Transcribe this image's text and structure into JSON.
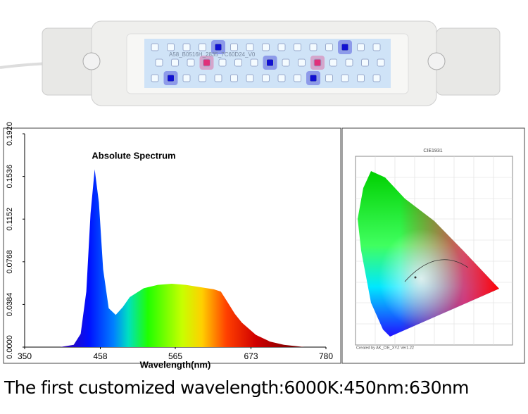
{
  "photo": {
    "label": "A58_B0516H_2835_7C60D24_V0"
  },
  "chart_data": {
    "type": "area",
    "title": "Absolute Spectrum",
    "x_label": "Wavelength(nm)",
    "x": [
      400,
      420,
      430,
      438,
      444,
      450,
      456,
      462,
      470,
      480,
      490,
      500,
      520,
      540,
      560,
      580,
      600,
      620,
      630,
      640,
      650,
      660,
      680,
      700,
      720,
      750
    ],
    "values": [
      0,
      0.002,
      0.012,
      0.05,
      0.12,
      0.16,
      0.13,
      0.07,
      0.035,
      0.029,
      0.036,
      0.045,
      0.053,
      0.056,
      0.057,
      0.056,
      0.054,
      0.052,
      0.05,
      0.04,
      0.03,
      0.022,
      0.011,
      0.005,
      0.002,
      0
    ],
    "xlim": [
      350,
      780
    ],
    "xticks": [
      350,
      458,
      565,
      673,
      780
    ],
    "ylim": [
      0,
      0.192
    ],
    "yticks": [
      {
        "value": 0,
        "label": "0.0000"
      },
      0.0384,
      0.0768,
      0.1152,
      0.1536,
      {
        "value": 0.192,
        "label": "0.1920"
      }
    ]
  },
  "cie": {
    "title": "CIE1931",
    "footer": "Created by AK_CIE_XYZ Ver1.22"
  },
  "caption": "The first customized wavelength:6000K:450nm:630nm"
}
